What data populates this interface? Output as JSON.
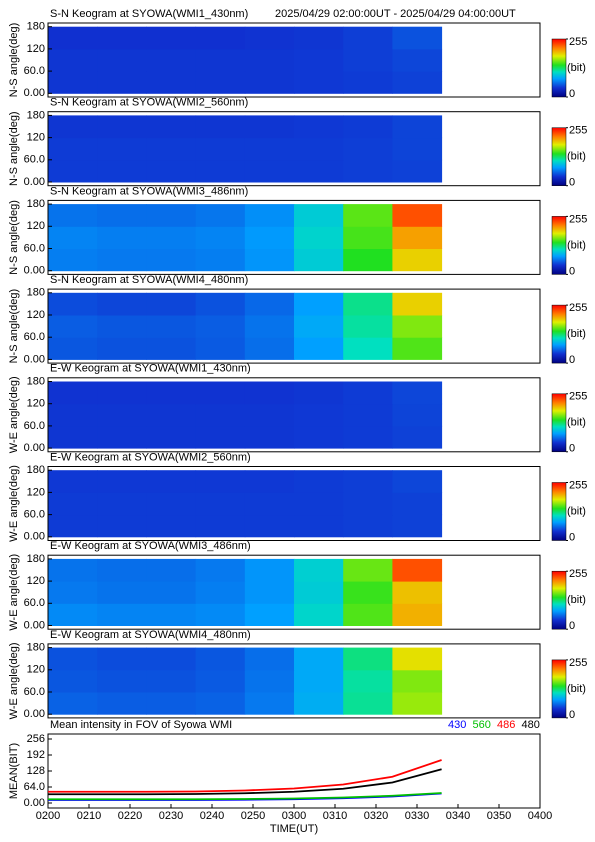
{
  "chart_data": [
    {
      "type": "heatmap",
      "title": "S-N Keogram at SYOWA(WMI1_430nm)",
      "subtitle": "2025/04/29 02:00:00UT - 2025/04/29 04:00:00UT",
      "ylabel": "N-S angle(deg)",
      "x_bins": [
        120,
        132,
        144,
        156,
        168,
        180,
        192,
        204,
        216
      ],
      "y_bins": [
        0,
        60,
        120,
        180
      ],
      "xlim": [
        120,
        240
      ],
      "ylim": [
        -10,
        190
      ],
      "yticks": [
        {
          "value": 0,
          "label": "0.00"
        },
        {
          "value": 60,
          "label": "60.0"
        },
        120,
        180
      ],
      "values": [
        [
          42,
          42,
          42,
          42,
          42,
          43,
          44,
          46
        ],
        [
          42,
          42,
          42,
          42,
          42,
          43,
          45,
          48
        ],
        [
          40,
          40,
          40,
          40,
          41,
          42,
          45,
          52
        ]
      ],
      "clim": [
        0,
        255
      ],
      "cticks": [
        0,
        255
      ],
      "clabel": "(bit)",
      "colormap": [
        [
          0,
          "#000080"
        ],
        [
          40,
          "#1030d0"
        ],
        [
          80,
          "#00a0ff"
        ],
        [
          110,
          "#00e0c0"
        ],
        [
          140,
          "#20e020"
        ],
        [
          180,
          "#e0f000"
        ],
        [
          215,
          "#ff8000"
        ],
        [
          255,
          "#ff0000"
        ]
      ]
    },
    {
      "type": "heatmap",
      "title": "S-N Keogram at SYOWA(WMI2_560nm)",
      "ylabel": "N-S angle(deg)",
      "x_bins": [
        120,
        132,
        144,
        156,
        168,
        180,
        192,
        204,
        216
      ],
      "y_bins": [
        0,
        60,
        120,
        180
      ],
      "xlim": [
        120,
        240
      ],
      "ylim": [
        -10,
        190
      ],
      "yticks": [
        {
          "value": 0,
          "label": "0.00"
        },
        {
          "value": 60,
          "label": "60.0"
        },
        120,
        180
      ],
      "values": [
        [
          44,
          44,
          44,
          44,
          44,
          44,
          45,
          46
        ],
        [
          44,
          44,
          44,
          44,
          44,
          44,
          45,
          47
        ],
        [
          42,
          42,
          42,
          42,
          42,
          43,
          44,
          47
        ]
      ],
      "clim": [
        0,
        255
      ],
      "cticks": [
        0,
        255
      ],
      "clabel": "(bit)",
      "colormap": [
        [
          0,
          "#000080"
        ],
        [
          40,
          "#1030d0"
        ],
        [
          80,
          "#00a0ff"
        ],
        [
          110,
          "#00e0c0"
        ],
        [
          140,
          "#20e020"
        ],
        [
          180,
          "#e0f000"
        ],
        [
          215,
          "#ff8000"
        ],
        [
          255,
          "#ff0000"
        ]
      ]
    },
    {
      "type": "heatmap",
      "title": "S-N Keogram at SYOWA(WMI3_486nm)",
      "ylabel": "N-S angle(deg)",
      "x_bins": [
        120,
        132,
        144,
        156,
        168,
        180,
        192,
        204,
        216
      ],
      "y_bins": [
        0,
        60,
        120,
        180
      ],
      "xlim": [
        120,
        240
      ],
      "ylim": [
        -10,
        190
      ],
      "yticks": [
        {
          "value": 0,
          "label": "0.00"
        },
        {
          "value": 60,
          "label": "60.0"
        },
        120,
        180
      ],
      "values": [
        [
          68,
          66,
          66,
          68,
          76,
          100,
          140,
          190
        ],
        [
          70,
          68,
          68,
          70,
          78,
          104,
          148,
          205
        ],
        [
          64,
          62,
          62,
          65,
          74,
          100,
          152,
          230
        ]
      ],
      "clim": [
        0,
        255
      ],
      "cticks": [
        0,
        255
      ],
      "clabel": "(bit)",
      "colormap": [
        [
          0,
          "#000080"
        ],
        [
          40,
          "#1030d0"
        ],
        [
          80,
          "#00a0ff"
        ],
        [
          110,
          "#00e0c0"
        ],
        [
          140,
          "#20e020"
        ],
        [
          180,
          "#e0f000"
        ],
        [
          215,
          "#ff8000"
        ],
        [
          255,
          "#ff0000"
        ]
      ]
    },
    {
      "type": "heatmap",
      "title": "S-N Keogram at SYOWA(WMI4_480nm)",
      "ylabel": "N-S angle(deg)",
      "x_bins": [
        120,
        132,
        144,
        156,
        168,
        180,
        192,
        204,
        216
      ],
      "y_bins": [
        0,
        60,
        120,
        180
      ],
      "xlim": [
        120,
        240
      ],
      "ylim": [
        -10,
        190
      ],
      "yticks": [
        {
          "value": 0,
          "label": "0.00"
        },
        {
          "value": 60,
          "label": "60.0"
        },
        120,
        180
      ],
      "values": [
        [
          54,
          52,
          52,
          55,
          62,
          80,
          110,
          150
        ],
        [
          56,
          54,
          54,
          56,
          64,
          84,
          116,
          160
        ],
        [
          50,
          48,
          48,
          52,
          60,
          80,
          120,
          190
        ]
      ],
      "clim": [
        0,
        255
      ],
      "cticks": [
        0,
        255
      ],
      "clabel": "(bit)",
      "colormap": [
        [
          0,
          "#000080"
        ],
        [
          40,
          "#1030d0"
        ],
        [
          80,
          "#00a0ff"
        ],
        [
          110,
          "#00e0c0"
        ],
        [
          140,
          "#20e020"
        ],
        [
          180,
          "#e0f000"
        ],
        [
          215,
          "#ff8000"
        ],
        [
          255,
          "#ff0000"
        ]
      ]
    },
    {
      "type": "heatmap",
      "title": "E-W Keogram at SYOWA(WMI1_430nm)",
      "ylabel": "W-E angle(deg)",
      "x_bins": [
        120,
        132,
        144,
        156,
        168,
        180,
        192,
        204,
        216
      ],
      "y_bins": [
        0,
        60,
        120,
        180
      ],
      "xlim": [
        120,
        240
      ],
      "ylim": [
        -10,
        190
      ],
      "yticks": [
        {
          "value": 0,
          "label": "0.00"
        },
        {
          "value": 60,
          "label": "60.0"
        },
        120,
        180
      ],
      "values": [
        [
          42,
          42,
          42,
          42,
          42,
          43,
          44,
          46
        ],
        [
          42,
          42,
          42,
          42,
          42,
          43,
          44,
          47
        ],
        [
          41,
          41,
          41,
          41,
          41,
          42,
          44,
          48
        ]
      ],
      "clim": [
        0,
        255
      ],
      "cticks": [
        0,
        255
      ],
      "clabel": "(bit)",
      "colormap": [
        [
          0,
          "#000080"
        ],
        [
          40,
          "#1030d0"
        ],
        [
          80,
          "#00a0ff"
        ],
        [
          110,
          "#00e0c0"
        ],
        [
          140,
          "#20e020"
        ],
        [
          180,
          "#e0f000"
        ],
        [
          215,
          "#ff8000"
        ],
        [
          255,
          "#ff0000"
        ]
      ]
    },
    {
      "type": "heatmap",
      "title": "E-W Keogram at SYOWA(WMI2_560nm)",
      "ylabel": "W-E angle(deg)",
      "x_bins": [
        120,
        132,
        144,
        156,
        168,
        180,
        192,
        204,
        216
      ],
      "y_bins": [
        0,
        60,
        120,
        180
      ],
      "xlim": [
        120,
        240
      ],
      "ylim": [
        -10,
        190
      ],
      "yticks": [
        {
          "value": 0,
          "label": "0.00"
        },
        {
          "value": 60,
          "label": "60.0"
        },
        120,
        180
      ],
      "values": [
        [
          44,
          44,
          44,
          44,
          44,
          44,
          45,
          46
        ],
        [
          44,
          44,
          44,
          44,
          44,
          44,
          45,
          46
        ],
        [
          43,
          43,
          43,
          43,
          43,
          44,
          45,
          48
        ]
      ],
      "clim": [
        0,
        255
      ],
      "cticks": [
        0,
        255
      ],
      "clabel": "(bit)",
      "colormap": [
        [
          0,
          "#000080"
        ],
        [
          40,
          "#1030d0"
        ],
        [
          80,
          "#00a0ff"
        ],
        [
          110,
          "#00e0c0"
        ],
        [
          140,
          "#20e020"
        ],
        [
          180,
          "#e0f000"
        ],
        [
          215,
          "#ff8000"
        ],
        [
          255,
          "#ff0000"
        ]
      ]
    },
    {
      "type": "heatmap",
      "title": "E-W Keogram at SYOWA(WMI3_486nm)",
      "ylabel": "W-E angle(deg)",
      "x_bins": [
        120,
        132,
        144,
        156,
        168,
        180,
        192,
        204,
        216
      ],
      "y_bins": [
        0,
        60,
        120,
        180
      ],
      "xlim": [
        120,
        240
      ],
      "ylim": [
        -10,
        190
      ],
      "yticks": [
        {
          "value": 0,
          "label": "0.00"
        },
        {
          "value": 60,
          "label": "60.0"
        },
        120,
        180
      ],
      "values": [
        [
          72,
          70,
          70,
          72,
          80,
          105,
          150,
          200
        ],
        [
          66,
          64,
          64,
          68,
          76,
          100,
          145,
          195
        ],
        [
          64,
          62,
          62,
          66,
          76,
          102,
          155,
          230
        ]
      ],
      "clim": [
        0,
        255
      ],
      "cticks": [
        0,
        255
      ],
      "clabel": "(bit)",
      "colormap": [
        [
          0,
          "#000080"
        ],
        [
          40,
          "#1030d0"
        ],
        [
          80,
          "#00a0ff"
        ],
        [
          110,
          "#00e0c0"
        ],
        [
          140,
          "#20e020"
        ],
        [
          180,
          "#e0f000"
        ],
        [
          215,
          "#ff8000"
        ],
        [
          255,
          "#ff0000"
        ]
      ]
    },
    {
      "type": "heatmap",
      "title": "E-W Keogram at SYOWA(WMI4_480nm)",
      "ylabel": "W-E angle(deg)",
      "x_bins": [
        120,
        132,
        144,
        156,
        168,
        180,
        192,
        204,
        216
      ],
      "y_bins": [
        0,
        60,
        120,
        180
      ],
      "xlim": [
        120,
        240
      ],
      "ylim": [
        -10,
        190
      ],
      "yticks": [
        {
          "value": 0,
          "label": "0.00"
        },
        {
          "value": 60,
          "label": "60.0"
        },
        120,
        180
      ],
      "values": [
        [
          58,
          56,
          56,
          58,
          66,
          86,
          118,
          165
        ],
        [
          54,
          52,
          52,
          55,
          64,
          84,
          116,
          160
        ],
        [
          52,
          50,
          50,
          54,
          62,
          84,
          122,
          185
        ]
      ],
      "clim": [
        0,
        255
      ],
      "cticks": [
        0,
        255
      ],
      "clabel": "(bit)",
      "colormap": [
        [
          0,
          "#000080"
        ],
        [
          40,
          "#1030d0"
        ],
        [
          80,
          "#00a0ff"
        ],
        [
          110,
          "#00e0c0"
        ],
        [
          140,
          "#20e020"
        ],
        [
          180,
          "#e0f000"
        ],
        [
          215,
          "#ff8000"
        ],
        [
          255,
          "#ff0000"
        ]
      ]
    },
    {
      "type": "line",
      "title": "Mean intensity in FOV of Syowa WMI",
      "xlabel": "TIME(UT)",
      "ylabel": "MEAN(BIT)",
      "x": [
        120,
        132,
        144,
        156,
        168,
        180,
        192,
        204,
        216
      ],
      "series": [
        {
          "name": "430",
          "color": "#0000ff",
          "values": [
            12,
            12,
            12,
            12,
            13,
            15,
            19,
            26,
            38
          ]
        },
        {
          "name": "560",
          "color": "#00c000",
          "values": [
            15,
            15,
            15,
            15,
            16,
            18,
            22,
            29,
            40
          ]
        },
        {
          "name": "486",
          "color": "#ff0000",
          "values": [
            45,
            45,
            45,
            46,
            50,
            58,
            74,
            105,
            172
          ]
        },
        {
          "name": "480",
          "color": "#000000",
          "values": [
            35,
            35,
            35,
            36,
            39,
            45,
            57,
            82,
            135
          ]
        }
      ],
      "xlim": [
        120,
        240
      ],
      "xticks": [
        {
          "value": 120,
          "label": "0200"
        },
        {
          "value": 130,
          "label": "0210"
        },
        {
          "value": 140,
          "label": "0220"
        },
        {
          "value": 150,
          "label": "0230"
        },
        {
          "value": 160,
          "label": "0240"
        },
        {
          "value": 170,
          "label": "0250"
        },
        {
          "value": 180,
          "label": "0300"
        },
        {
          "value": 190,
          "label": "0310"
        },
        {
          "value": 200,
          "label": "0320"
        },
        {
          "value": 210,
          "label": "0330"
        },
        {
          "value": 220,
          "label": "0340"
        },
        {
          "value": 230,
          "label": "0350"
        },
        {
          "value": 240,
          "label": "0400"
        }
      ],
      "ylim": [
        -20,
        276
      ],
      "yticks": [
        {
          "value": 0,
          "label": "0.00"
        },
        {
          "value": 64,
          "label": "64.0"
        },
        128,
        192,
        256
      ]
    }
  ]
}
